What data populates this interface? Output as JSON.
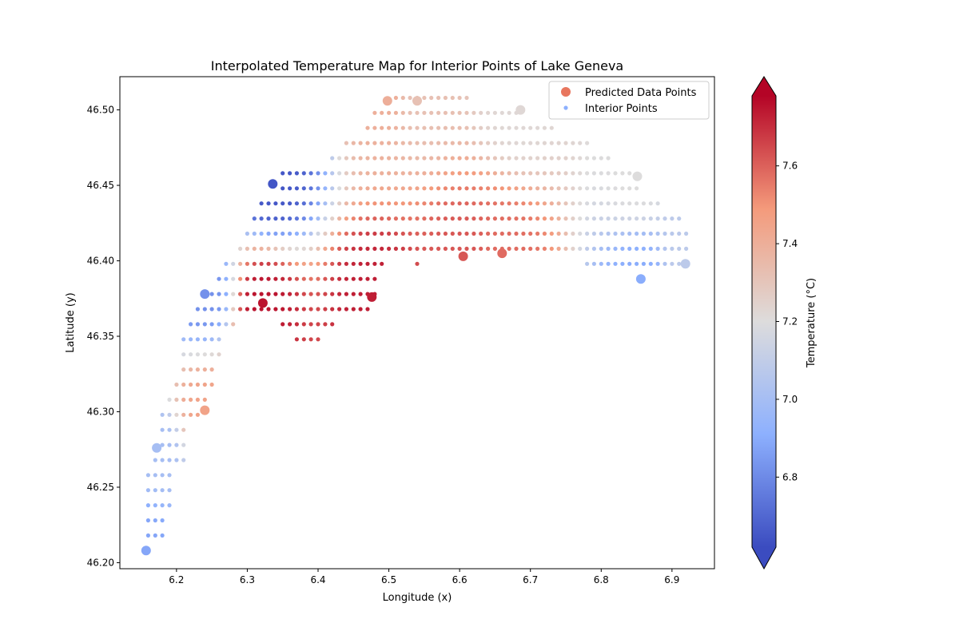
{
  "chart_data": {
    "type": "scatter",
    "title": "Interpolated Temperature Map for Interior Points of Lake Geneva",
    "xlabel": "Longitude (x)",
    "ylabel": "Latitude (y)",
    "xlim": [
      6.12,
      6.96
    ],
    "ylim": [
      46.196,
      46.522
    ],
    "xticks": [
      "6.2",
      "6.3",
      "6.4",
      "6.5",
      "6.6",
      "6.7",
      "6.8",
      "6.9"
    ],
    "yticks": [
      "46.20",
      "46.25",
      "46.30",
      "46.35",
      "46.40",
      "46.45",
      "46.50"
    ],
    "grid": false,
    "legend": {
      "location": "upper right",
      "entries": [
        "Predicted Data Points",
        "Interior Points"
      ]
    },
    "colorbar": {
      "label": "Temperature (°C)",
      "cmap": "coolwarm",
      "vmin": 6.62,
      "vmax": 7.78,
      "ticks": [
        "6.8",
        "7.0",
        "7.2",
        "7.4",
        "7.6"
      ],
      "extend": "both"
    },
    "series": [
      {
        "name": "Predicted Data Points",
        "points": [
          {
            "x": 6.157,
            "y": 46.208,
            "t": 6.88
          },
          {
            "x": 6.172,
            "y": 46.276,
            "t": 7.0
          },
          {
            "x": 6.24,
            "y": 46.301,
            "t": 7.45
          },
          {
            "x": 6.24,
            "y": 46.378,
            "t": 6.82
          },
          {
            "x": 6.322,
            "y": 46.372,
            "t": 7.75
          },
          {
            "x": 6.336,
            "y": 46.451,
            "t": 6.65
          },
          {
            "x": 6.476,
            "y": 46.376,
            "t": 7.73
          },
          {
            "x": 6.498,
            "y": 46.506,
            "t": 7.4
          },
          {
            "x": 6.54,
            "y": 46.506,
            "t": 7.32
          },
          {
            "x": 6.605,
            "y": 46.403,
            "t": 7.62
          },
          {
            "x": 6.66,
            "y": 46.405,
            "t": 7.58
          },
          {
            "x": 6.686,
            "y": 46.5,
            "t": 7.22
          },
          {
            "x": 6.851,
            "y": 46.456,
            "t": 7.2
          },
          {
            "x": 6.856,
            "y": 46.388,
            "t": 6.9
          },
          {
            "x": 6.919,
            "y": 46.398,
            "t": 7.08
          }
        ]
      },
      {
        "name": "Interior Points",
        "grid_dx": 0.01,
        "grid_dy": 0.01,
        "rows": [
          {
            "y": 46.218,
            "x_from": 6.16,
            "x_to": 6.18
          },
          {
            "y": 46.228,
            "x_from": 6.16,
            "x_to": 6.18
          },
          {
            "y": 46.238,
            "x_from": 6.16,
            "x_to": 6.19
          },
          {
            "y": 46.248,
            "x_from": 6.16,
            "x_to": 6.19
          },
          {
            "y": 46.258,
            "x_from": 6.16,
            "x_to": 6.19
          },
          {
            "y": 46.268,
            "x_from": 6.17,
            "x_to": 6.21
          },
          {
            "y": 46.278,
            "x_from": 6.18,
            "x_to": 6.21
          },
          {
            "y": 46.288,
            "x_from": 6.18,
            "x_to": 6.21
          },
          {
            "y": 46.298,
            "x_from": 6.18,
            "x_to": 6.23
          },
          {
            "y": 46.308,
            "x_from": 6.19,
            "x_to": 6.24
          },
          {
            "y": 46.318,
            "x_from": 6.2,
            "x_to": 6.25
          },
          {
            "y": 46.328,
            "x_from": 6.21,
            "x_to": 6.25
          },
          {
            "y": 46.338,
            "x_from": 6.21,
            "x_to": 6.26
          },
          {
            "y": 46.348,
            "x_from": 6.21,
            "x_to": 6.26,
            "x2_from": 6.37,
            "x2_to": 6.4
          },
          {
            "y": 46.358,
            "x_from": 6.22,
            "x_to": 6.28,
            "x2_from": 6.35,
            "x2_to": 6.42
          },
          {
            "y": 46.368,
            "x_from": 6.23,
            "x_to": 6.47
          },
          {
            "y": 46.378,
            "x_from": 6.24,
            "x_to": 6.48
          },
          {
            "y": 46.388,
            "x_from": 6.26,
            "x_to": 6.48
          },
          {
            "y": 46.398,
            "x_from": 6.27,
            "x_to": 6.49,
            "extra": [
              6.54
            ],
            "x2_from": 6.78,
            "x2_to": 6.92
          },
          {
            "y": 46.408,
            "x_from": 6.29,
            "x_to": 6.92
          },
          {
            "y": 46.418,
            "x_from": 6.3,
            "x_to": 6.92
          },
          {
            "y": 46.428,
            "x_from": 6.31,
            "x_to": 6.91
          },
          {
            "y": 46.438,
            "x_from": 6.32,
            "x_to": 6.88
          },
          {
            "y": 46.448,
            "x_from": 6.35,
            "x_to": 6.85
          },
          {
            "y": 46.458,
            "x_from": 6.35,
            "x_to": 6.84
          },
          {
            "y": 46.468,
            "x_from": 6.42,
            "x_to": 6.81
          },
          {
            "y": 46.478,
            "x_from": 6.44,
            "x_to": 6.78
          },
          {
            "y": 46.488,
            "x_from": 6.47,
            "x_to": 6.73
          },
          {
            "y": 46.498,
            "x_from": 6.48,
            "x_to": 6.68
          },
          {
            "y": 46.508,
            "x_from": 6.51,
            "x_to": 6.61
          }
        ]
      }
    ]
  }
}
